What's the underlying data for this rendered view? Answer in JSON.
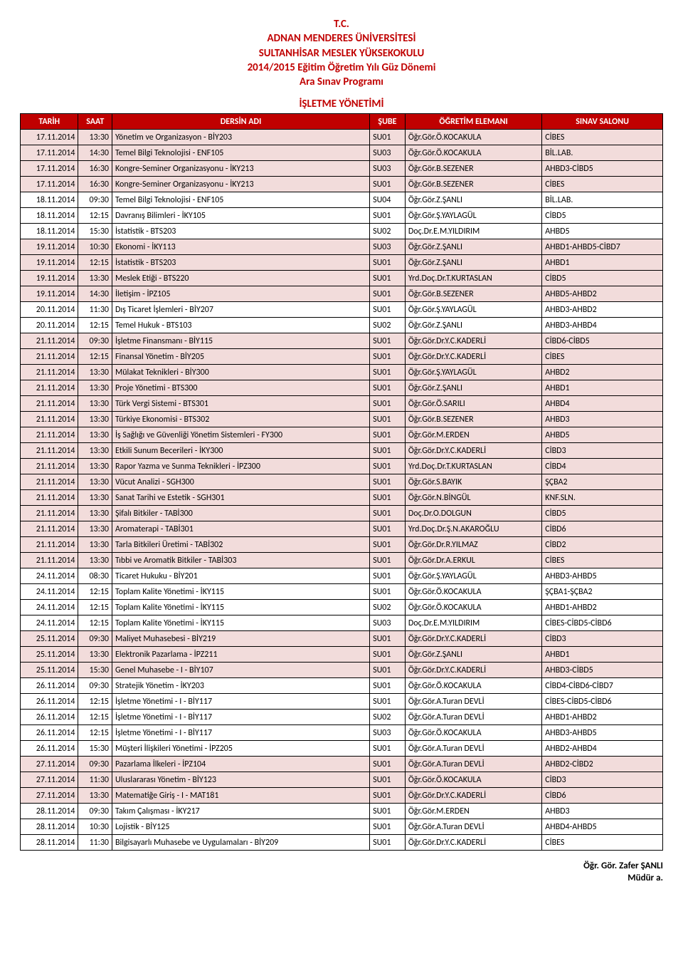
{
  "header_lines": [
    "T.C.",
    "ADNAN MENDERES ÜNİVERSİTESİ",
    "SULTANHİSAR MESLEK YÜKSEKOKULU",
    "2014/2015 Eğitim Öğretim Yılı Güz Dönemi",
    "Ara Sınav Programı"
  ],
  "section_title": "İŞLETME YÖNETİMİ",
  "columns": [
    "TARİH",
    "SAAT",
    "DERSİN ADI",
    "ŞUBE",
    "ÖĞRETİM ELEMANI",
    "SINAV SALONU"
  ],
  "band_color_alt": "#f2dcdb",
  "header_bg": "#c00000",
  "rows": [
    [
      "17.11.2014",
      "13:30",
      "Yönetim ve Organizasyon - BİY203",
      "SU01",
      "Öğr.Gör.Ö.KOCAKULA",
      "CİBES"
    ],
    [
      "17.11.2014",
      "14:30",
      "Temel Bilgi Teknolojisi - ENF105",
      "SU03",
      "Öğr.Gör.Ö.KOCAKULA",
      "BİL.LAB."
    ],
    [
      "17.11.2014",
      "16:30",
      "Kongre-Seminer Organizasyonu - İKY213",
      "SU03",
      "Öğr.Gör.B.SEZENER",
      "AHBD3-CİBD5"
    ],
    [
      "17.11.2014",
      "16:30",
      "Kongre-Seminer Organizasyonu - İKY213",
      "SU01",
      "Öğr.Gör.B.SEZENER",
      "CİBES"
    ],
    [
      "18.11.2014",
      "09:30",
      "Temel Bilgi Teknolojisi - ENF105",
      "SU04",
      "Öğr.Gör.Z.ŞANLI",
      "BİL.LAB."
    ],
    [
      "18.11.2014",
      "12:15",
      "Davranış Bilimleri - İKY105",
      "SU01",
      "Öğr.Gör.Ş.YAYLAGÜL",
      "CİBD5"
    ],
    [
      "18.11.2014",
      "15:30",
      "İstatistik - BTS203",
      "SU02",
      "Doç.Dr.E.M.YILDIRIM",
      "AHBD5"
    ],
    [
      "19.11.2014",
      "10:30",
      "Ekonomi - İKY113",
      "SU03",
      "Öğr.Gör.Z.ŞANLI",
      "AHBD1-AHBD5-CİBD7"
    ],
    [
      "19.11.2014",
      "12:15",
      "İstatistik - BTS203",
      "SU01",
      "Öğr.Gör.Z.ŞANLI",
      "AHBD1"
    ],
    [
      "19.11.2014",
      "13:30",
      "Meslek Etiği - BTS220",
      "SU01",
      "Yrd.Doç.Dr.T.KURTASLAN",
      "CİBD5"
    ],
    [
      "19.11.2014",
      "14:30",
      "İletişim - İPZ105",
      "SU01",
      "Öğr.Gör.B.SEZENER",
      "AHBD5-AHBD2"
    ],
    [
      "20.11.2014",
      "11:30",
      "Dış Ticaret İşlemleri - BİY207",
      "SU01",
      "Öğr.Gör.Ş.YAYLAGÜL",
      "AHBD3-AHBD2"
    ],
    [
      "20.11.2014",
      "12:15",
      "Temel Hukuk - BTS103",
      "SU02",
      "Öğr.Gör.Z.ŞANLI",
      "AHBD3-AHBD4"
    ],
    [
      "21.11.2014",
      "09:30",
      "İşletme Finansmanı - BİY115",
      "SU01",
      "Öğr.Gör.Dr.Y.C.KADERLİ",
      "CİBD6-CİBD5"
    ],
    [
      "21.11.2014",
      "12:15",
      "Finansal Yönetim - BİY205",
      "SU01",
      "Öğr.Gör.Dr.Y.C.KADERLİ",
      "CİBES"
    ],
    [
      "21.11.2014",
      "13:30",
      "Mülakat Teknikleri - BİY300",
      "SU01",
      "Öğr.Gör.Ş.YAYLAGÜL",
      "AHBD2"
    ],
    [
      "21.11.2014",
      "13:30",
      "Proje Yönetimi - BTS300",
      "SU01",
      "Öğr.Gör.Z.ŞANLI",
      "AHBD1"
    ],
    [
      "21.11.2014",
      "13:30",
      "Türk Vergi Sistemi - BTS301",
      "SU01",
      "Öğr.Gör.Ö.SARILI",
      "AHBD4"
    ],
    [
      "21.11.2014",
      "13:30",
      "Türkiye Ekonomisi - BTS302",
      "SU01",
      "Öğr.Gör.B.SEZENER",
      "AHBD3"
    ],
    [
      "21.11.2014",
      "13:30",
      "İş Sağlığı ve Güvenliği Yönetim Sistemleri - FY300",
      "SU01",
      "Öğr.Gör.M.ERDEN",
      "AHBD5"
    ],
    [
      "21.11.2014",
      "13:30",
      "Etkili Sunum Becerileri - İKY300",
      "SU01",
      "Öğr.Gör.Dr.Y.C.KADERLİ",
      "CİBD3"
    ],
    [
      "21.11.2014",
      "13:30",
      "Rapor Yazma ve Sunma Teknikleri - İPZ300",
      "SU01",
      "Yrd.Doç.Dr.T.KURTASLAN",
      "CİBD4"
    ],
    [
      "21.11.2014",
      "13:30",
      "Vücut Analizi - SGH300",
      "SU01",
      "Öğr.Gör.S.BAYIK",
      "ŞÇBA2"
    ],
    [
      "21.11.2014",
      "13:30",
      "Sanat Tarihi ve Estetik - SGH301",
      "SU01",
      "Öğr.Gör.N.BİNGÜL",
      "KNF.SLN."
    ],
    [
      "21.11.2014",
      "13:30",
      "Şifalı Bitkiler - TABİ300",
      "SU01",
      "Doç.Dr.O.DOLGUN",
      "CİBD5"
    ],
    [
      "21.11.2014",
      "13:30",
      "Aromaterapi - TABİ301",
      "SU01",
      "Yrd.Doç.Dr.Ş.N.AKAROĞLU",
      "CİBD6"
    ],
    [
      "21.11.2014",
      "13:30",
      "Tarla Bitkileri Üretimi - TABİ302",
      "SU01",
      "Öğr.Gör.Dr.R.YILMAZ",
      "CİBD2"
    ],
    [
      "21.11.2014",
      "13:30",
      "Tıbbi ve Aromatik Bitkiler - TABİ303",
      "SU01",
      "Öğr.Gör.Dr.A.ERKUL",
      "CİBES"
    ],
    [
      "24.11.2014",
      "08:30",
      "Ticaret Hukuku - BİY201",
      "SU01",
      "Öğr.Gör.Ş.YAYLAGÜL",
      "AHBD3-AHBD5"
    ],
    [
      "24.11.2014",
      "12:15",
      "Toplam Kalite Yönetimi - İKY115",
      "SU01",
      "Öğr.Gör.Ö.KOCAKULA",
      "ŞÇBA1-ŞÇBA2"
    ],
    [
      "24.11.2014",
      "12:15",
      "Toplam Kalite Yönetimi - İKY115",
      "SU02",
      "Öğr.Gör.Ö.KOCAKULA",
      "AHBD1-AHBD2"
    ],
    [
      "24.11.2014",
      "12:15",
      "Toplam Kalite Yönetimi - İKY115",
      "SU03",
      "Doç.Dr.E.M.YILDIRIM",
      "CİBES-CİBD5-CİBD6"
    ],
    [
      "25.11.2014",
      "09:30",
      "Maliyet Muhasebesi - BİY219",
      "SU01",
      "Öğr.Gör.Dr.Y.C.KADERLİ",
      "CİBD3"
    ],
    [
      "25.11.2014",
      "13:30",
      "Elektronik Pazarlama - İPZ211",
      "SU01",
      "Öğr.Gör.Z.ŞANLI",
      "AHBD1"
    ],
    [
      "25.11.2014",
      "15:30",
      "Genel Muhasebe - I - BİY107",
      "SU01",
      "Öğr.Gör.Dr.Y.C.KADERLİ",
      "AHBD3-CİBD5"
    ],
    [
      "26.11.2014",
      "09:30",
      "Stratejik Yönetim - İKY203",
      "SU01",
      "Öğr.Gör.Ö.KOCAKULA",
      "CİBD4-CİBD6-CİBD7"
    ],
    [
      "26.11.2014",
      "12:15",
      "İşletme Yönetimi - I - BİY117",
      "SU01",
      "Öğr.Gör.A.Turan DEVLİ",
      "CİBES-CİBD5-CİBD6"
    ],
    [
      "26.11.2014",
      "12:15",
      "İşletme Yönetimi - I - BİY117",
      "SU02",
      "Öğr.Gör.A.Turan DEVLİ",
      "AHBD1-AHBD2"
    ],
    [
      "26.11.2014",
      "12:15",
      "İşletme Yönetimi - I - BİY117",
      "SU03",
      "Öğr.Gör.Ö.KOCAKULA",
      "AHBD3-AHBD5"
    ],
    [
      "26.11.2014",
      "15:30",
      "Müşteri İlişkileri Yönetimi - İPZ205",
      "SU01",
      "Öğr.Gör.A.Turan DEVLİ",
      "AHBD2-AHBD4"
    ],
    [
      "27.11.2014",
      "09:30",
      "Pazarlama İlkeleri - İPZ104",
      "SU01",
      "Öğr.Gör.A.Turan DEVLİ",
      "AHBD2-CİBD2"
    ],
    [
      "27.11.2014",
      "11:30",
      "Uluslararası Yönetim - BİY123",
      "SU01",
      "Öğr.Gör.Ö.KOCAKULA",
      "CİBD3"
    ],
    [
      "27.11.2014",
      "13:30",
      "Matematiğe Giriş - I - MAT181",
      "SU01",
      "Öğr.Gör.Dr.Y.C.KADERLİ",
      "CİBD6"
    ],
    [
      "28.11.2014",
      "09:30",
      "Takım Çalışması - İKY217",
      "SU01",
      "Öğr.Gör.M.ERDEN",
      "AHBD3"
    ],
    [
      "28.11.2014",
      "10:30",
      "Lojistik - BİY125",
      "SU01",
      "Öğr.Gör.A.Turan DEVLİ",
      "AHBD4-AHBD5"
    ],
    [
      "28.11.2014",
      "11:30",
      "Bilgisayarlı Muhasebe ve Uygulamaları - BİY209",
      "SU01",
      "Öğr.Gör.Dr.Y.C.KADERLİ",
      "CİBES"
    ]
  ],
  "footer_lines": [
    "Öğr. Gör. Zafer ŞANLI",
    "Müdür a."
  ]
}
